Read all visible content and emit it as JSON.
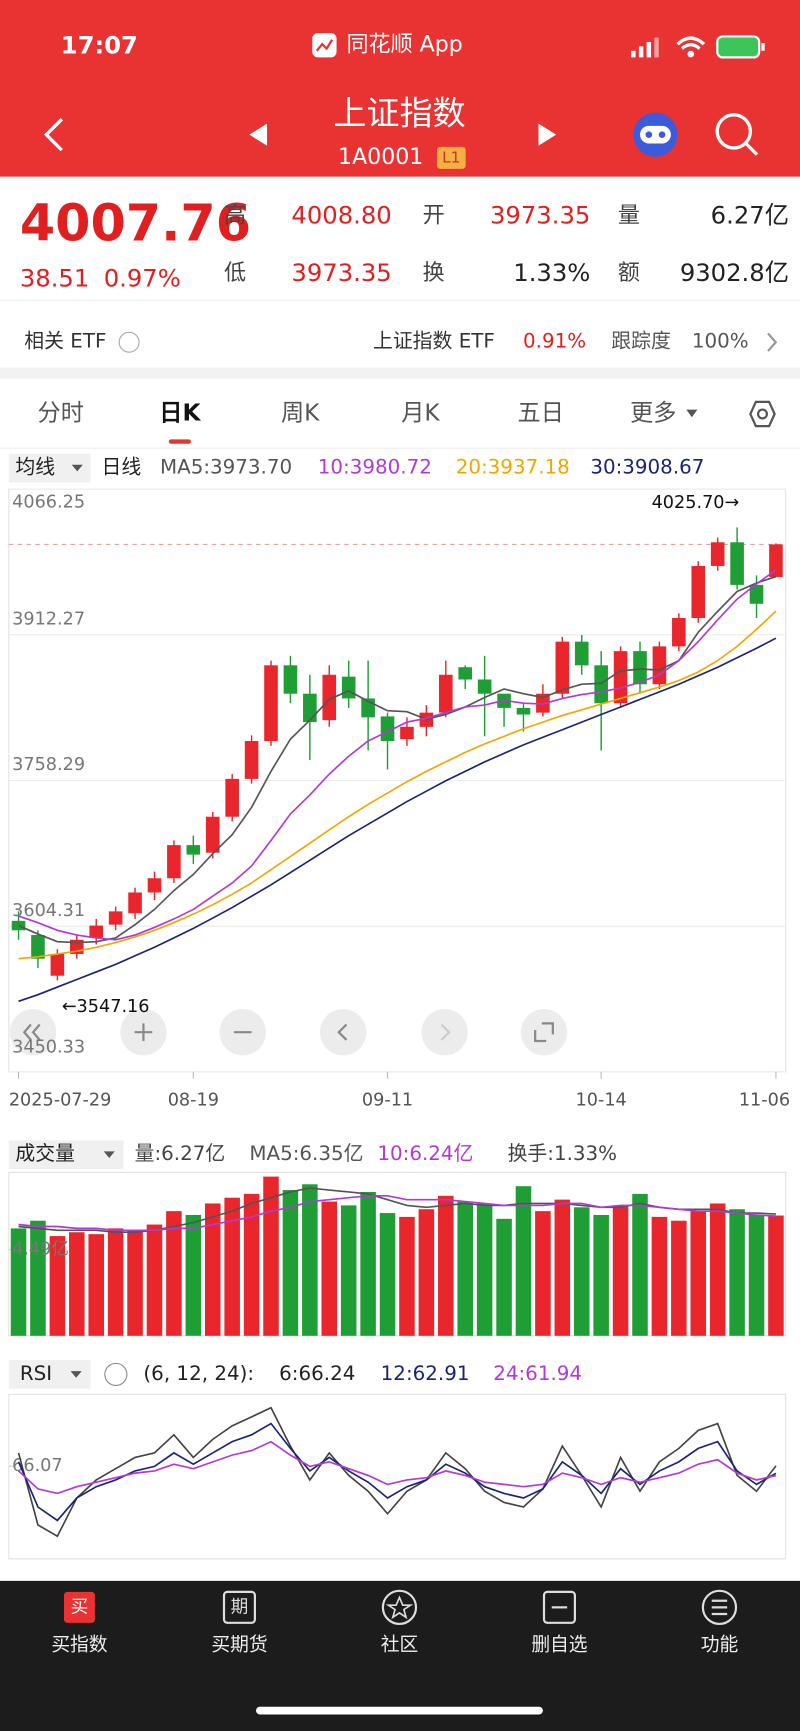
{
  "status_bar": {
    "time": "17:07",
    "app": "同花顺 App"
  },
  "header": {
    "title": "上证指数",
    "code": "1A0001",
    "level": "L1"
  },
  "quote": {
    "price": "4007.76",
    "change": "38.51",
    "change_pct": "0.97%",
    "fields": [
      {
        "label": "高",
        "value": "4008.80"
      },
      {
        "label": "开",
        "value": "3973.35"
      },
      {
        "label": "量",
        "value": "6.27亿"
      },
      {
        "label": "低",
        "value": "3973.35"
      },
      {
        "label": "换",
        "value": "1.33%"
      },
      {
        "label": "额",
        "value": "9302.8亿"
      }
    ]
  },
  "etf": {
    "label": "相关 ETF",
    "name": "上证指数 ETF",
    "change": "0.91%",
    "tracking_label": "跟踪度",
    "tracking": "100%"
  },
  "tabs": [
    "分时",
    "日K",
    "周K",
    "月K",
    "五日",
    "更多"
  ],
  "chart_data": [
    {
      "type": "candlestick",
      "selector": "均线",
      "period": "日线",
      "legend": [
        "MA5:3973.70",
        "10:3980.72",
        "20:3937.18",
        "30:3908.67"
      ],
      "categories": [
        "2025-07-29",
        null,
        null,
        null,
        null,
        null,
        null,
        null,
        null,
        "08-19",
        null,
        null,
        null,
        null,
        null,
        null,
        null,
        null,
        null,
        "09-11",
        null,
        null,
        null,
        null,
        null,
        null,
        null,
        null,
        null,
        null,
        "10-14",
        null,
        null,
        null,
        null,
        null,
        null,
        null,
        null,
        "11-06"
      ],
      "open": [
        3610,
        3595,
        3552,
        3575,
        3592,
        3606,
        3618,
        3640,
        3655,
        3690,
        3682,
        3720,
        3760,
        3800,
        3880,
        3850,
        3822,
        3868,
        3845,
        3826,
        3802,
        3815,
        3830,
        3878,
        3865,
        3850,
        3835,
        3830,
        3850,
        3905,
        3880,
        3840,
        3895,
        3860,
        3900,
        3930,
        3985,
        4010,
        3965,
        3973.35
      ],
      "high": [
        3620,
        3600,
        3580,
        3595,
        3612,
        3625,
        3645,
        3662,
        3695,
        3700,
        3725,
        3765,
        3806,
        3885,
        3890,
        3870,
        3880,
        3885,
        3885,
        3830,
        3825,
        3838,
        3885,
        3880,
        3890,
        3845,
        3840,
        3860,
        3910,
        3912,
        3895,
        3900,
        3905,
        3905,
        3935,
        3990,
        4015,
        4025.7,
        3975,
        4008.8
      ],
      "low": [
        3590,
        3560,
        3547.16,
        3570,
        3585,
        3600,
        3612,
        3632,
        3650,
        3670,
        3676,
        3715,
        3755,
        3795,
        3840,
        3780,
        3815,
        3835,
        3790,
        3770,
        3795,
        3805,
        3825,
        3855,
        3805,
        3815,
        3810,
        3826,
        3845,
        3870,
        3790,
        3835,
        3850,
        3855,
        3895,
        3925,
        3980,
        3960,
        3930,
        3973.35
      ],
      "close": [
        3600,
        3570,
        3575,
        3590,
        3605,
        3620,
        3640,
        3655,
        3690,
        3680,
        3720,
        3760,
        3800,
        3880,
        3850,
        3820,
        3870,
        3845,
        3825,
        3800,
        3815,
        3830,
        3870,
        3865,
        3850,
        3835,
        3828,
        3850,
        3905,
        3880,
        3840,
        3895,
        3860,
        3900,
        3930,
        3985,
        4010,
        3965,
        3945,
        4007.76
      ],
      "up_color": "#e8262b",
      "down_color": "#1f9e35",
      "series": [
        {
          "color": "#555555",
          "values": [
            3605,
            3596,
            3588,
            3587,
            3588,
            3592,
            3606,
            3622,
            3642,
            3659,
            3681,
            3701,
            3730,
            3768,
            3802,
            3822,
            3844,
            3853,
            3842,
            3832,
            3831,
            3823,
            3828,
            3836,
            3846,
            3855,
            3850,
            3846,
            3854,
            3860,
            3861,
            3874,
            3876,
            3875,
            3885,
            3915,
            3937,
            3958,
            3967,
            3973.7
          ]
        },
        {
          "color": "#b03ad6",
          "values": [
            3615,
            3608,
            3600,
            3595,
            3592,
            3590,
            3595,
            3603,
            3612,
            3622,
            3636,
            3650,
            3668,
            3695,
            3723,
            3743,
            3765,
            3784,
            3800,
            3810,
            3820,
            3824,
            3830,
            3836,
            3838,
            3843,
            3840,
            3839,
            3845,
            3849,
            3852,
            3856,
            3862,
            3870,
            3885,
            3905,
            3928,
            3950,
            3966,
            3980.72
          ]
        },
        {
          "color": "#f0a800",
          "values": [
            3570,
            3572,
            3575,
            3578,
            3582,
            3587,
            3593,
            3600,
            3608,
            3617,
            3627,
            3638,
            3650,
            3664,
            3678,
            3692,
            3706,
            3720,
            3733,
            3745,
            3757,
            3768,
            3778,
            3788,
            3797,
            3805,
            3813,
            3820,
            3827,
            3833,
            3839,
            3845,
            3851,
            3857,
            3864,
            3873,
            3885,
            3900,
            3918,
            3937.18
          ]
        },
        {
          "color": "#1b2378",
          "values": [
            3525,
            3532,
            3540,
            3548,
            3556,
            3564,
            3573,
            3582,
            3592,
            3602,
            3613,
            3624,
            3636,
            3648,
            3661,
            3674,
            3687,
            3700,
            3712,
            3724,
            3736,
            3747,
            3758,
            3768,
            3778,
            3787,
            3796,
            3804,
            3812,
            3820,
            3828,
            3836,
            3844,
            3852,
            3860,
            3869,
            3878,
            3888,
            3898,
            3908.67
          ]
        }
      ],
      "ylim": [
        3450.33,
        4066.25
      ],
      "yticks": [
        3450.33,
        3604.31,
        3758.29,
        3912.27,
        4066.25
      ],
      "grid": true,
      "annotations": [
        "4025.70→",
        "←3547.16"
      ]
    },
    {
      "type": "bar",
      "selector": "成交量",
      "legend": [
        "量:6.27亿",
        "MA5:6.35亿",
        "10:6.24亿",
        "换手:1.33%"
      ],
      "values": [
        5.6,
        6.0,
        5.2,
        5.4,
        5.3,
        5.6,
        5.5,
        5.8,
        6.5,
        6.3,
        6.9,
        7.2,
        7.4,
        8.3,
        7.6,
        7.9,
        7.0,
        6.8,
        7.5,
        6.4,
        6.2,
        6.6,
        7.3,
        7.0,
        6.9,
        6.1,
        7.8,
        6.5,
        7.1,
        6.7,
        6.3,
        6.8,
        7.4,
        6.2,
        6.0,
        6.5,
        6.9,
        6.6,
        6.3,
        6.27
      ],
      "up_color": "#e8262b",
      "down_color": "#1f9e35",
      "series": [
        {
          "color": "#555555",
          "values": [
            5.7,
            5.6,
            5.5,
            5.5,
            5.5,
            5.4,
            5.4,
            5.5,
            5.7,
            5.9,
            6.2,
            6.5,
            6.9,
            7.2,
            7.5,
            7.7,
            7.6,
            7.5,
            7.4,
            7.1,
            6.8,
            6.7,
            6.8,
            6.9,
            6.8,
            6.8,
            6.9,
            6.9,
            6.9,
            6.8,
            6.7,
            6.7,
            6.9,
            6.7,
            6.6,
            6.6,
            6.6,
            6.4,
            6.4,
            6.35
          ]
        },
        {
          "color": "#b03ad6",
          "values": [
            5.8,
            5.7,
            5.7,
            5.6,
            5.6,
            5.5,
            5.5,
            5.5,
            5.6,
            5.6,
            5.8,
            6.0,
            6.2,
            6.5,
            6.7,
            7.0,
            7.1,
            7.2,
            7.3,
            7.3,
            7.1,
            7.1,
            7.1,
            7.0,
            6.9,
            6.8,
            6.8,
            6.8,
            6.9,
            6.9,
            6.7,
            6.8,
            6.8,
            6.7,
            6.6,
            6.5,
            6.5,
            6.4,
            6.3,
            6.24
          ]
        }
      ],
      "ylim": [
        0,
        8.52
      ],
      "yticks": [
        {
          "value": 4.49,
          "label": "4.49亿"
        }
      ]
    },
    {
      "type": "line",
      "selector": "RSI",
      "params": "(6, 12, 24):",
      "legend": [
        "6:66.24",
        "12:62.91",
        "24:61.94"
      ],
      "series": [
        {
          "color": "#444444",
          "values": [
            72,
            40,
            35,
            52,
            60,
            65,
            70,
            72,
            80,
            70,
            78,
            84,
            88,
            92,
            75,
            60,
            72,
            62,
            55,
            45,
            55,
            60,
            72,
            65,
            55,
            50,
            48,
            56,
            75,
            62,
            48,
            70,
            55,
            68,
            74,
            82,
            85,
            62,
            55,
            66.24
          ]
        },
        {
          "color": "#1b2378",
          "values": [
            68,
            48,
            42,
            52,
            57,
            60,
            64,
            66,
            72,
            67,
            72,
            77,
            80,
            85,
            74,
            64,
            70,
            64,
            59,
            52,
            57,
            60,
            67,
            63,
            57,
            54,
            52,
            56,
            68,
            62,
            54,
            65,
            58,
            64,
            68,
            74,
            77,
            64,
            58,
            62.91
          ]
        },
        {
          "color": "#b03ad6",
          "values": [
            64,
            56,
            54,
            57,
            59,
            61,
            63,
            64,
            67,
            65,
            68,
            71,
            73,
            77,
            71,
            66,
            68,
            65,
            62,
            58,
            60,
            61,
            64,
            62,
            59,
            58,
            57,
            58,
            63,
            61,
            58,
            61,
            59,
            61,
            63,
            67,
            69,
            63,
            60,
            61.94
          ]
        }
      ],
      "ylim": [
        25,
        98
      ],
      "yticks": [
        66.07
      ]
    }
  ],
  "nav": [
    "买指数",
    "买期货",
    "社区",
    "删自选",
    "功能"
  ],
  "nav_icons": [
    "买",
    "期"
  ]
}
